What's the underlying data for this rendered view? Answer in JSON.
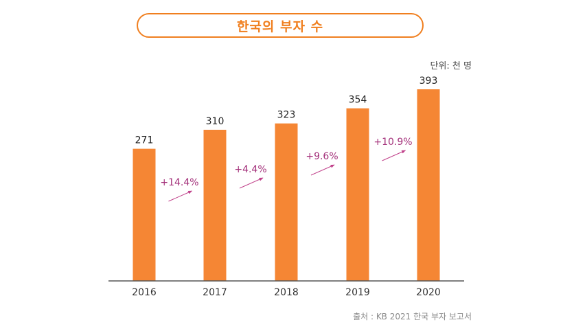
{
  "chart_data": {
    "type": "bar",
    "title": "한국의 부자 수",
    "unit_label": "단위: 천 명",
    "source": "출처 : KB 2021 한국 부자 보고서",
    "categories": [
      "2016",
      "2017",
      "2018",
      "2019",
      "2020"
    ],
    "values": [
      271,
      310,
      323,
      354,
      393
    ],
    "value_labels": [
      "271",
      "310",
      "323",
      "354",
      "393"
    ],
    "growth_labels": [
      "+14.4%",
      "+4.4%",
      "+9.6%",
      "+10.9%"
    ],
    "ylim": [
      0,
      393
    ],
    "bar_color": "#f58634",
    "accent_color": "#f07f1f",
    "growth_color": "#a3307a"
  }
}
